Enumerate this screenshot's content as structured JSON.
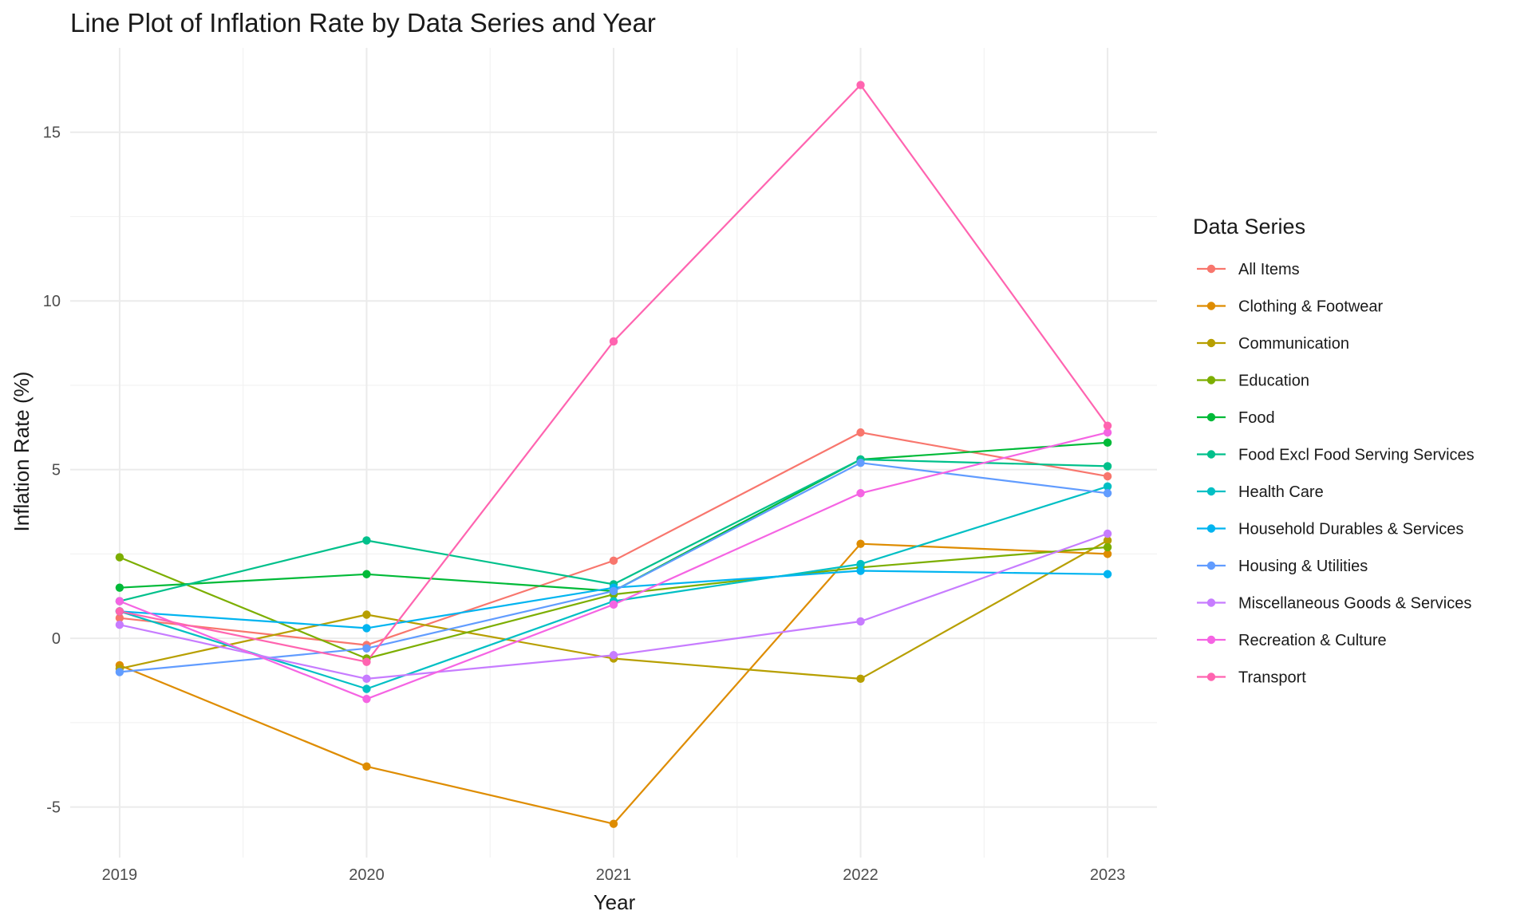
{
  "chart_data": {
    "type": "line",
    "title": "Line Plot of Inflation Rate by Data Series and Year",
    "xlabel": "Year",
    "ylabel": "Inflation Rate (%)",
    "x": [
      2019,
      2020,
      2021,
      2022,
      2023
    ],
    "x_ticks": [
      "2019",
      "2020",
      "2021",
      "2022",
      "2023"
    ],
    "y_ticks": [
      "-5",
      "0",
      "5",
      "10",
      "15"
    ],
    "xlim": [
      2018.8,
      2023.2
    ],
    "ylim": [
      -6.5,
      17.5
    ],
    "grid": true,
    "legend_title": "Data Series",
    "legend_position": "right",
    "series": [
      {
        "name": "All Items",
        "color": "#F8766D",
        "values": [
          0.6,
          -0.2,
          2.3,
          6.1,
          4.8
        ]
      },
      {
        "name": "Clothing & Footwear",
        "color": "#DE8C00",
        "values": [
          -0.8,
          -3.8,
          -5.5,
          2.8,
          2.5
        ]
      },
      {
        "name": "Communication",
        "color": "#B79F00",
        "values": [
          -0.9,
          0.7,
          -0.6,
          -1.2,
          2.9
        ]
      },
      {
        "name": "Education",
        "color": "#7CAE00",
        "values": [
          2.4,
          -0.6,
          1.3,
          2.1,
          2.7
        ]
      },
      {
        "name": "Food",
        "color": "#00BA38",
        "values": [
          1.5,
          1.9,
          1.4,
          5.3,
          5.8
        ]
      },
      {
        "name": "Food Excl Food Serving Services",
        "color": "#00C08B",
        "values": [
          1.1,
          2.9,
          1.6,
          5.3,
          5.1
        ]
      },
      {
        "name": "Health Care",
        "color": "#00BFC4",
        "values": [
          0.8,
          -1.5,
          1.1,
          2.2,
          4.5
        ]
      },
      {
        "name": "Household Durables & Services",
        "color": "#00B4F0",
        "values": [
          0.8,
          0.3,
          1.5,
          2.0,
          1.9
        ]
      },
      {
        "name": "Housing & Utilities",
        "color": "#619CFF",
        "values": [
          -1.0,
          -0.3,
          1.4,
          5.2,
          4.3
        ]
      },
      {
        "name": "Miscellaneous Goods & Services",
        "color": "#C77CFF",
        "values": [
          0.4,
          -1.2,
          -0.5,
          0.5,
          3.1
        ]
      },
      {
        "name": "Recreation & Culture",
        "color": "#F564E3",
        "values": [
          1.1,
          -1.8,
          1.0,
          4.3,
          6.1
        ]
      },
      {
        "name": "Transport",
        "color": "#FF64B0",
        "values": [
          0.8,
          -0.7,
          8.8,
          16.4,
          6.3
        ]
      }
    ]
  }
}
